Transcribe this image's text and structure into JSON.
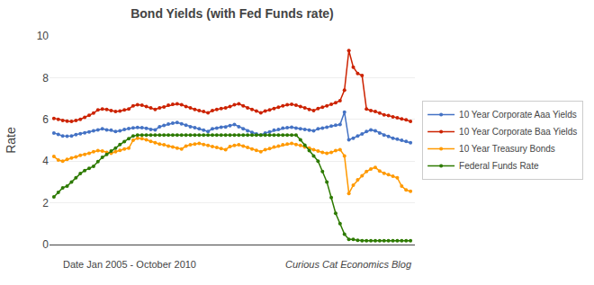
{
  "chart_data": {
    "type": "line",
    "title": "Bond Yields (with Fed Funds rate)",
    "xlabel": "Date Jan 2005 - October 2010",
    "annotations": [
      "Curious Cat Economics Blog"
    ],
    "ylabel": "Rate",
    "categories": [
      null,
      null,
      null,
      null,
      null,
      null,
      null,
      null,
      null,
      null,
      null,
      null,
      null,
      null,
      null,
      null,
      null,
      null,
      null,
      null,
      null,
      null,
      null,
      null,
      null,
      null,
      null,
      null,
      null,
      null,
      null,
      null,
      null,
      null,
      null,
      null,
      null,
      null,
      null,
      null,
      null,
      null,
      null,
      null,
      null,
      null,
      null,
      null,
      null,
      null,
      null,
      null,
      null,
      null,
      null,
      null,
      null,
      null,
      null,
      null,
      null,
      null,
      null,
      null,
      null,
      null,
      null,
      null,
      null,
      null,
      null,
      null,
      null,
      null,
      null,
      null,
      null,
      null,
      null,
      null,
      null,
      null
    ],
    "series": [
      {
        "name": "10 Year Corporate Aaa Yields",
        "color": "#4472c4",
        "marker": "circle",
        "values": [
          5.35,
          5.28,
          5.21,
          5.19,
          5.21,
          5.27,
          5.31,
          5.36,
          5.4,
          5.45,
          5.5,
          5.55,
          5.5,
          5.48,
          5.42,
          5.45,
          5.52,
          5.56,
          5.59,
          5.61,
          5.6,
          5.57,
          5.52,
          5.5,
          5.65,
          5.71,
          5.78,
          5.82,
          5.85,
          5.79,
          5.72,
          5.65,
          5.6,
          5.55,
          5.48,
          5.42,
          5.55,
          5.58,
          5.62,
          5.64,
          5.7,
          5.75,
          5.65,
          5.55,
          5.45,
          5.38,
          5.3,
          5.25,
          5.35,
          5.4,
          5.48,
          5.52,
          5.58,
          5.6,
          5.62,
          5.58,
          5.55,
          5.52,
          5.48,
          5.45,
          5.55,
          5.58,
          5.62,
          5.68,
          5.72,
          5.75,
          6.35,
          5.02,
          5.1,
          5.2,
          5.3,
          5.42,
          5.5,
          5.45,
          5.35,
          5.25,
          5.18,
          5.1,
          5.05,
          5.0,
          4.95,
          4.88
        ]
      },
      {
        "name": "10 Year Corporate Baa Yields",
        "color": "#cc2200",
        "marker": "circle",
        "values": [
          6.05,
          6.0,
          5.95,
          5.92,
          5.9,
          5.95,
          6.0,
          6.1,
          6.2,
          6.3,
          6.45,
          6.5,
          6.48,
          6.42,
          6.38,
          6.4,
          6.45,
          6.5,
          6.65,
          6.7,
          6.68,
          6.62,
          6.55,
          6.48,
          6.55,
          6.6,
          6.68,
          6.72,
          6.75,
          6.7,
          6.62,
          6.55,
          6.48,
          6.42,
          6.38,
          6.32,
          6.42,
          6.48,
          6.52,
          6.55,
          6.62,
          6.7,
          6.75,
          6.65,
          6.55,
          6.48,
          6.4,
          6.32,
          6.4,
          6.45,
          6.52,
          6.58,
          6.65,
          6.7,
          6.72,
          6.68,
          6.62,
          6.55,
          6.48,
          6.42,
          6.52,
          6.58,
          6.65,
          6.72,
          6.8,
          6.9,
          7.4,
          9.3,
          8.5,
          8.2,
          8.1,
          6.5,
          6.42,
          6.38,
          6.3,
          6.22,
          6.18,
          6.12,
          6.08,
          6.02,
          5.98,
          5.9
        ]
      },
      {
        "name": "10 Year Treasury Bonds",
        "color": "#ff9900",
        "marker": "circle",
        "values": [
          4.22,
          4.05,
          4.0,
          4.08,
          4.15,
          4.2,
          4.28,
          4.32,
          4.38,
          4.45,
          4.5,
          4.48,
          4.42,
          4.38,
          4.45,
          4.52,
          4.58,
          4.62,
          5.0,
          5.1,
          5.08,
          5.02,
          4.95,
          4.88,
          4.82,
          4.78,
          4.72,
          4.68,
          4.62,
          4.58,
          4.72,
          4.78,
          4.82,
          4.85,
          4.8,
          4.75,
          4.7,
          4.65,
          4.6,
          4.55,
          4.7,
          4.75,
          4.78,
          4.72,
          4.65,
          4.58,
          4.52,
          4.45,
          4.55,
          4.6,
          4.68,
          4.72,
          4.78,
          4.82,
          4.85,
          4.8,
          4.75,
          4.68,
          4.62,
          4.55,
          4.48,
          4.42,
          4.38,
          4.42,
          4.5,
          4.55,
          4.25,
          2.45,
          2.85,
          3.1,
          3.3,
          3.5,
          3.62,
          3.7,
          3.52,
          3.42,
          3.35,
          3.28,
          3.2,
          2.8,
          2.62,
          2.55
        ]
      },
      {
        "name": "Federal Funds Rate",
        "color": "#2d7a00",
        "marker": "circle",
        "values": [
          2.28,
          2.5,
          2.72,
          2.8,
          3.0,
          3.2,
          3.4,
          3.55,
          3.65,
          3.75,
          3.98,
          4.18,
          4.32,
          4.48,
          4.62,
          4.8,
          4.94,
          5.08,
          5.2,
          5.25,
          5.25,
          5.25,
          5.25,
          5.25,
          5.25,
          5.25,
          5.25,
          5.25,
          5.25,
          5.25,
          5.25,
          5.25,
          5.25,
          5.25,
          5.25,
          5.25,
          5.25,
          5.25,
          5.25,
          5.25,
          5.25,
          5.25,
          5.25,
          5.25,
          5.25,
          5.25,
          5.25,
          5.25,
          5.25,
          5.25,
          5.25,
          5.25,
          5.25,
          5.25,
          5.25,
          5.25,
          5.02,
          4.76,
          4.5,
          4.25,
          4.0,
          3.5,
          3.0,
          2.25,
          1.5,
          1.0,
          0.5,
          0.25,
          0.25,
          0.2,
          0.18,
          0.18,
          0.18,
          0.18,
          0.18,
          0.18,
          0.18,
          0.18,
          0.18,
          0.18,
          0.18,
          0.18
        ]
      }
    ],
    "ylim": [
      0,
      10
    ],
    "yticks": [
      0,
      2,
      4,
      6,
      8,
      10
    ],
    "grid": true,
    "legend": "right",
    "tick_labels": "y"
  }
}
